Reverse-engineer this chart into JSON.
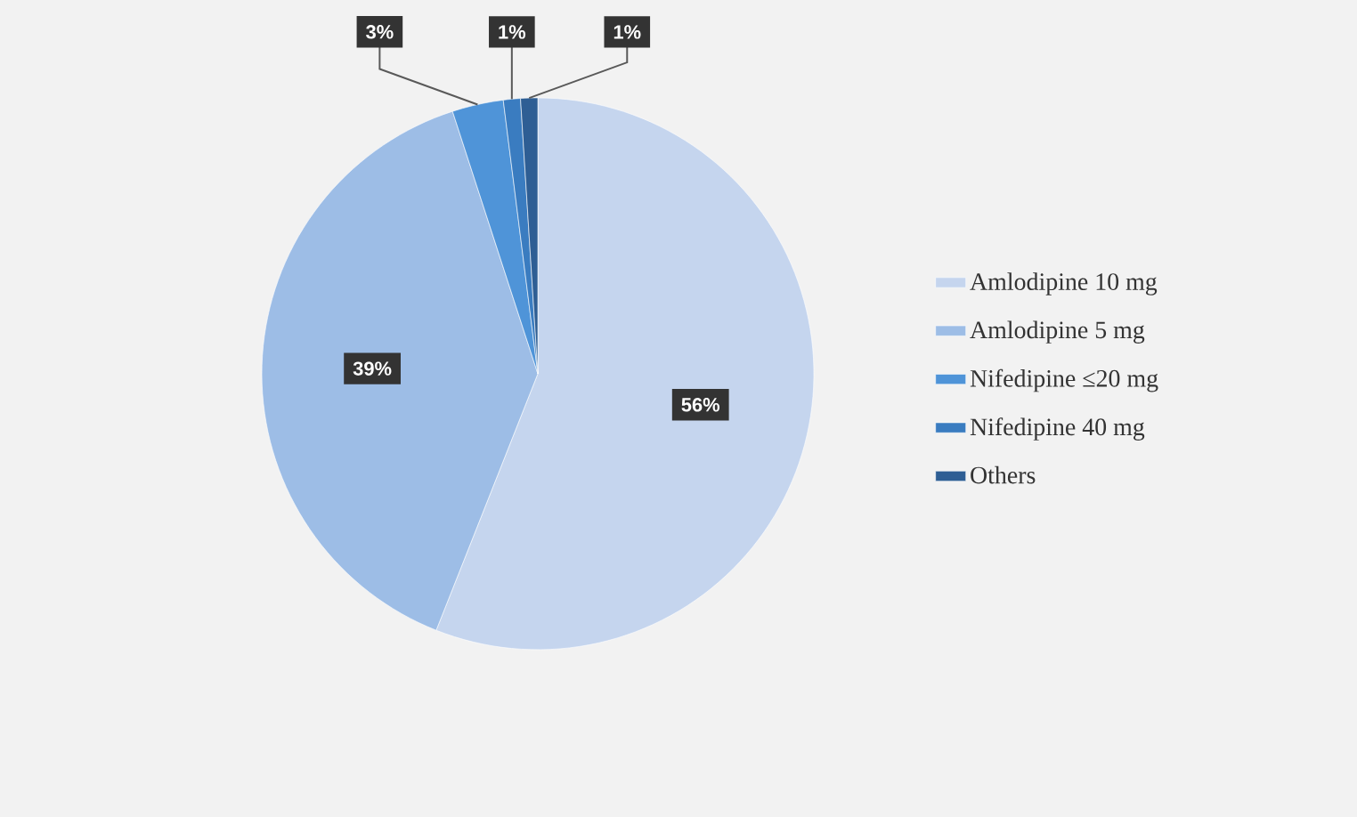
{
  "chart_data": {
    "type": "pie",
    "categories": [
      "Amlodipine 10 mg",
      "Amlodipine 5 mg",
      "Nifedipine ≤20 mg",
      "Nifedipine 40 mg",
      "Others"
    ],
    "values": [
      56,
      39,
      3,
      1,
      1
    ],
    "colors": [
      "#c5d5ee",
      "#9dbde6",
      "#4f94d8",
      "#3a7cc0",
      "#2e5e94"
    ],
    "value_labels": [
      "56%",
      "39%",
      "3%",
      "1%",
      "1%"
    ],
    "legend": "right"
  }
}
